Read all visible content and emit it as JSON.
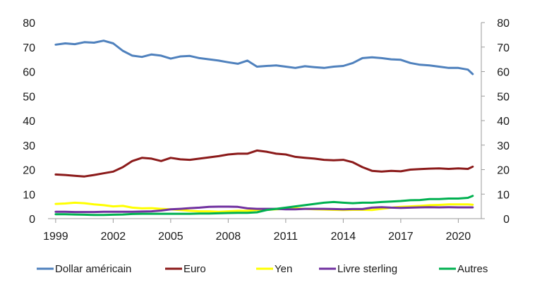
{
  "chart_data": {
    "type": "line",
    "x_ticks": [
      "1999",
      "2002",
      "2005",
      "2008",
      "2011",
      "2014",
      "2017",
      "2020"
    ],
    "x_range": [
      1999,
      2020.75
    ],
    "ylim": [
      0,
      80
    ],
    "y_ticks": [
      "0",
      "10",
      "20",
      "30",
      "40",
      "50",
      "60",
      "70",
      "80"
    ],
    "y_ticks_right": [
      "0",
      "10",
      "20",
      "30",
      "40",
      "50",
      "60",
      "70",
      "80"
    ],
    "grid": false,
    "legend_position": "bottom",
    "series": [
      {
        "name": "Dollar américain",
        "color": "#4f81bd",
        "x": [
          1999,
          1999.5,
          2000,
          2000.5,
          2001,
          2001.5,
          2002,
          2002.5,
          2003,
          2003.5,
          2004,
          2004.5,
          2005,
          2005.5,
          2006,
          2006.5,
          2007,
          2007.5,
          2008,
          2008.5,
          2009,
          2009.5,
          2010,
          2010.5,
          2011,
          2011.5,
          2012,
          2012.5,
          2013,
          2013.5,
          2014,
          2014.5,
          2015,
          2015.5,
          2016,
          2016.5,
          2017,
          2017.5,
          2018,
          2018.5,
          2019,
          2019.5,
          2020,
          2020.5,
          2020.75
        ],
        "values": [
          71,
          71.5,
          71.2,
          72,
          71.8,
          72.6,
          71.5,
          68.5,
          66.5,
          66,
          67,
          66.5,
          65.3,
          66.2,
          66.4,
          65.5,
          65,
          64.5,
          63.8,
          63.2,
          64.5,
          62,
          62.3,
          62.5,
          62,
          61.5,
          62.2,
          61.8,
          61.5,
          62,
          62.3,
          63.5,
          65.5,
          65.8,
          65.5,
          65,
          64.8,
          63.5,
          62.8,
          62.5,
          62,
          61.5,
          61.5,
          60.8,
          59
        ]
      },
      {
        "name": "Euro",
        "color": "#8b1a1a",
        "x": [
          1999,
          1999.5,
          2000,
          2000.5,
          2001,
          2001.5,
          2002,
          2002.5,
          2003,
          2003.5,
          2004,
          2004.5,
          2005,
          2005.5,
          2006,
          2006.5,
          2007,
          2007.5,
          2008,
          2008.5,
          2009,
          2009.5,
          2010,
          2010.5,
          2011,
          2011.5,
          2012,
          2012.5,
          2013,
          2013.5,
          2014,
          2014.5,
          2015,
          2015.5,
          2016,
          2016.5,
          2017,
          2017.5,
          2018,
          2018.5,
          2019,
          2019.5,
          2020,
          2020.5,
          2020.75
        ],
        "values": [
          18,
          17.8,
          17.5,
          17.2,
          17.8,
          18.5,
          19.2,
          21,
          23.5,
          24.8,
          24.5,
          23.5,
          24.8,
          24.2,
          24,
          24.5,
          25,
          25.5,
          26.2,
          26.5,
          26.5,
          27.8,
          27.3,
          26.5,
          26.2,
          25.2,
          24.8,
          24.5,
          24,
          23.8,
          24,
          23,
          21,
          19.5,
          19.2,
          19.5,
          19.3,
          20,
          20.2,
          20.4,
          20.5,
          20.3,
          20.5,
          20.3,
          21.2
        ]
      },
      {
        "name": "Yen",
        "color": "#ffff00",
        "x": [
          1999,
          1999.5,
          2000,
          2000.5,
          2001,
          2001.5,
          2002,
          2002.5,
          2003,
          2003.5,
          2004,
          2004.5,
          2005,
          2005.5,
          2006,
          2006.5,
          2007,
          2007.5,
          2008,
          2008.5,
          2009,
          2009.5,
          2010,
          2010.5,
          2011,
          2011.5,
          2012,
          2012.5,
          2013,
          2013.5,
          2014,
          2014.5,
          2015,
          2015.5,
          2016,
          2016.5,
          2017,
          2017.5,
          2018,
          2018.5,
          2019,
          2019.5,
          2020,
          2020.5,
          2020.75
        ],
        "values": [
          6,
          6.2,
          6.5,
          6.3,
          5.8,
          5.5,
          5,
          5.2,
          4.5,
          4.2,
          4.3,
          4,
          3.8,
          3.5,
          3.2,
          3,
          3,
          2.8,
          3,
          3.2,
          3.2,
          3.5,
          3.6,
          3.8,
          4,
          4.2,
          4,
          3.8,
          3.7,
          3.6,
          3.5,
          3.6,
          3.6,
          3.5,
          4,
          4.5,
          4.8,
          5,
          5.2,
          5.5,
          5.6,
          5.8,
          5.8,
          5.8,
          5.7
        ]
      },
      {
        "name": "Livre sterling",
        "color": "#7030a0",
        "x": [
          1999,
          1999.5,
          2000,
          2000.5,
          2001,
          2001.5,
          2002,
          2002.5,
          2003,
          2003.5,
          2004,
          2004.5,
          2005,
          2005.5,
          2006,
          2006.5,
          2007,
          2007.5,
          2008,
          2008.5,
          2009,
          2009.5,
          2010,
          2010.5,
          2011,
          2011.5,
          2012,
          2012.5,
          2013,
          2013.5,
          2014,
          2014.5,
          2015,
          2015.5,
          2016,
          2016.5,
          2017,
          2017.5,
          2018,
          2018.5,
          2019,
          2019.5,
          2020,
          2020.5,
          2020.75
        ],
        "values": [
          2.8,
          2.8,
          2.7,
          2.7,
          2.7,
          2.8,
          2.8,
          2.8,
          2.8,
          2.9,
          3,
          3.3,
          3.8,
          4,
          4.3,
          4.5,
          4.8,
          4.9,
          4.9,
          4.8,
          4.2,
          4,
          4,
          4,
          3.8,
          3.8,
          4,
          4,
          4,
          3.9,
          3.8,
          3.9,
          3.9,
          4.5,
          4.7,
          4.5,
          4.4,
          4.5,
          4.6,
          4.7,
          4.6,
          4.7,
          4.6,
          4.6,
          4.6
        ]
      },
      {
        "name": "Autres",
        "color": "#00b050",
        "x": [
          1999,
          1999.5,
          2000,
          2000.5,
          2001,
          2001.5,
          2002,
          2002.5,
          2003,
          2003.5,
          2004,
          2004.5,
          2005,
          2005.5,
          2006,
          2006.5,
          2007,
          2007.5,
          2008,
          2008.5,
          2009,
          2009.5,
          2010,
          2010.5,
          2011,
          2011.5,
          2012,
          2012.5,
          2013,
          2013.5,
          2014,
          2014.5,
          2015,
          2015.5,
          2016,
          2016.5,
          2017,
          2017.5,
          2018,
          2018.5,
          2019,
          2019.5,
          2020,
          2020.5,
          2020.75
        ],
        "values": [
          1.8,
          1.8,
          1.7,
          1.6,
          1.5,
          1.5,
          1.6,
          1.7,
          1.9,
          2,
          2,
          2,
          2,
          2,
          2,
          2.1,
          2.1,
          2.2,
          2.3,
          2.4,
          2.4,
          2.6,
          3.5,
          4,
          4.5,
          5,
          5.5,
          6,
          6.5,
          6.8,
          6.5,
          6.3,
          6.5,
          6.5,
          6.8,
          7,
          7.2,
          7.5,
          7.6,
          8,
          8,
          8.2,
          8.2,
          8.5,
          9.3
        ]
      }
    ]
  }
}
